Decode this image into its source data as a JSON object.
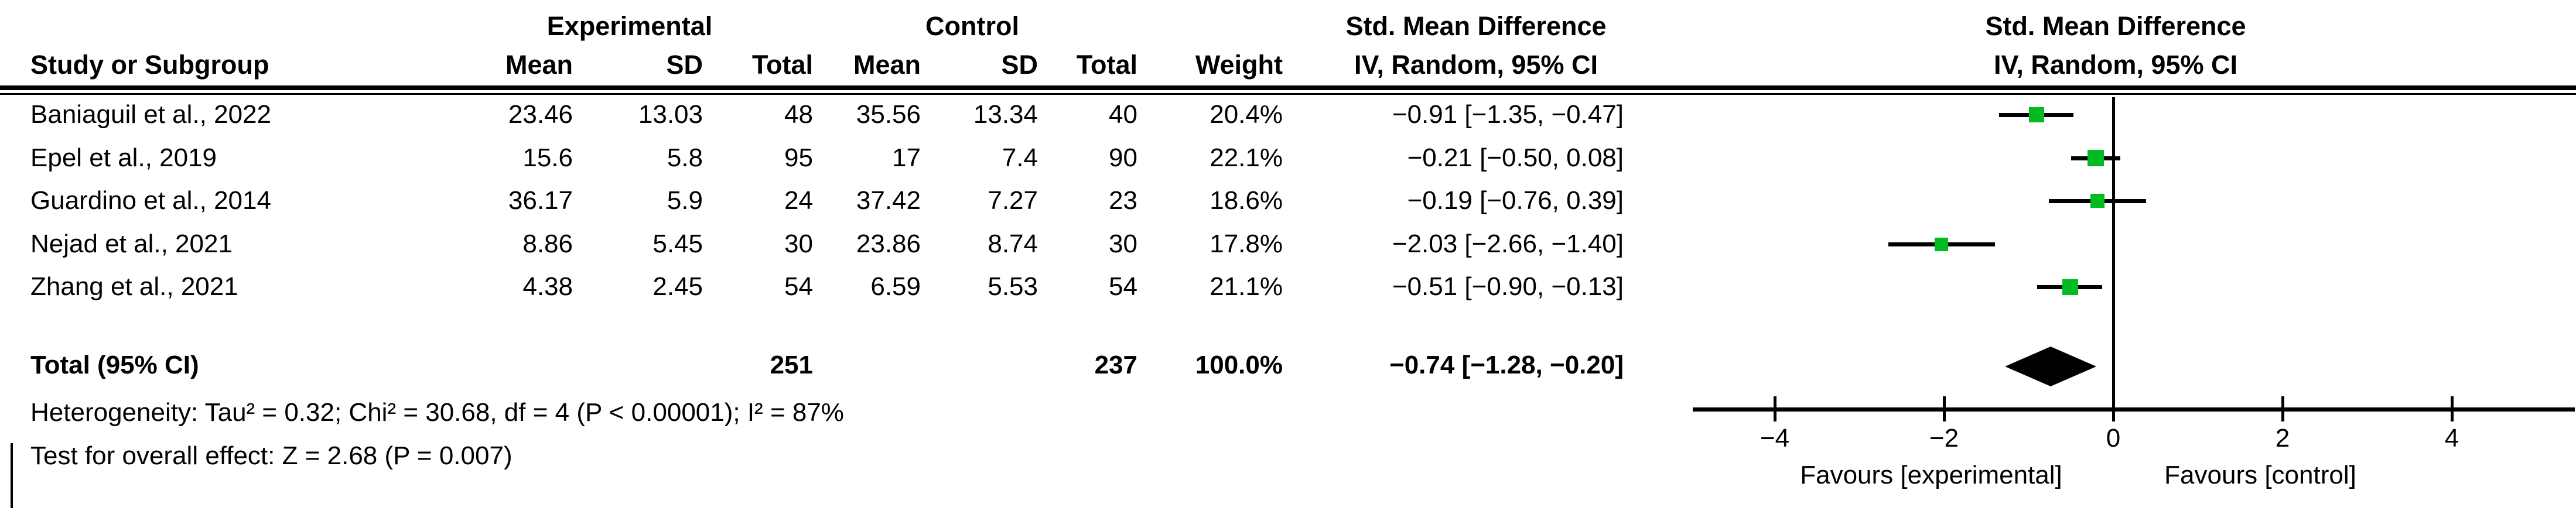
{
  "header": {
    "group_experimental": "Experimental",
    "group_control": "Control",
    "effect_title": "Std. Mean Difference",
    "effect_method": "IV, Random, 95% CI",
    "col_study": "Study or Subgroup",
    "col_mean": "Mean",
    "col_sd": "SD",
    "col_total": "Total",
    "col_weight": "Weight"
  },
  "table": {
    "rows": [
      {
        "study": "Baniaguil et al., 2022",
        "mean_e": "23.46",
        "sd_e": "13.03",
        "total_e": "48",
        "mean_c": "35.56",
        "sd_c": "13.34",
        "total_c": "40",
        "weight": "20.4%",
        "ci": "−0.91 [−1.35, −0.47]"
      },
      {
        "study": "Epel et al., 2019",
        "mean_e": "15.6",
        "sd_e": "5.8",
        "total_e": "95",
        "mean_c": "17",
        "sd_c": "7.4",
        "total_c": "90",
        "weight": "22.1%",
        "ci": "−0.21 [−0.50, 0.08]"
      },
      {
        "study": "Guardino et al., 2014",
        "mean_e": "36.17",
        "sd_e": "5.9",
        "total_e": "24",
        "mean_c": "37.42",
        "sd_c": "7.27",
        "total_c": "23",
        "weight": "18.6%",
        "ci": "−0.19 [−0.76, 0.39]"
      },
      {
        "study": "Nejad et al., 2021",
        "mean_e": "8.86",
        "sd_e": "5.45",
        "total_e": "30",
        "mean_c": "23.86",
        "sd_c": "8.74",
        "total_c": "30",
        "weight": "17.8%",
        "ci": "−2.03 [−2.66, −1.40]"
      },
      {
        "study": "Zhang et al., 2021",
        "mean_e": "4.38",
        "sd_e": "2.45",
        "total_e": "54",
        "mean_c": "6.59",
        "sd_c": "5.53",
        "total_c": "54",
        "weight": "21.1%",
        "ci": "−0.51 [−0.90, −0.13]"
      }
    ],
    "total_row": {
      "label": "Total (95% CI)",
      "total_e": "251",
      "total_c": "237",
      "weight": "100.0%",
      "ci": "−0.74 [−1.28, −0.20]"
    }
  },
  "footer": {
    "heterogeneity": "Heterogeneity: Tau² = 0.32; Chi² = 30.68, df = 4 (P < 0.00001); I² = 87%",
    "overall_effect": "Test for overall effect: Z = 2.68 (P = 0.007)"
  },
  "axis": {
    "favours_left": "Favours [experimental]",
    "favours_right": "Favours [control]"
  },
  "chart_data": {
    "type": "forest",
    "effect_measure": "Std. Mean Difference",
    "model": "IV, Random, 95% CI",
    "studies": [
      {
        "name": "Baniaguil et al., 2022",
        "smd": -0.91,
        "ci_low": -1.35,
        "ci_high": -0.47,
        "weight_pct": 20.4
      },
      {
        "name": "Epel et al., 2019",
        "smd": -0.21,
        "ci_low": -0.5,
        "ci_high": 0.08,
        "weight_pct": 22.1
      },
      {
        "name": "Guardino et al., 2014",
        "smd": -0.19,
        "ci_low": -0.76,
        "ci_high": 0.39,
        "weight_pct": 18.6
      },
      {
        "name": "Nejad et al., 2021",
        "smd": -2.03,
        "ci_low": -2.66,
        "ci_high": -1.4,
        "weight_pct": 17.8
      },
      {
        "name": "Zhang et al., 2021",
        "smd": -0.51,
        "ci_low": -0.9,
        "ci_high": -0.13,
        "weight_pct": 21.1
      }
    ],
    "total": {
      "smd": -0.74,
      "ci_low": -1.28,
      "ci_high": -0.2
    },
    "xticks": [
      -4,
      -2,
      0,
      2,
      4
    ],
    "xtick_labels": [
      "−4",
      "−2",
      "0",
      "2",
      "4"
    ],
    "xlim": [
      -4.95,
      5.45
    ],
    "marker_color": "#00bc20",
    "diamond_color": "#000000",
    "heterogeneity": {
      "tau2": 0.32,
      "chi2": 30.68,
      "df": 4,
      "p": "< 0.00001",
      "i2_pct": 87
    },
    "overall_effect": {
      "z": 2.68,
      "p": 0.007
    }
  }
}
